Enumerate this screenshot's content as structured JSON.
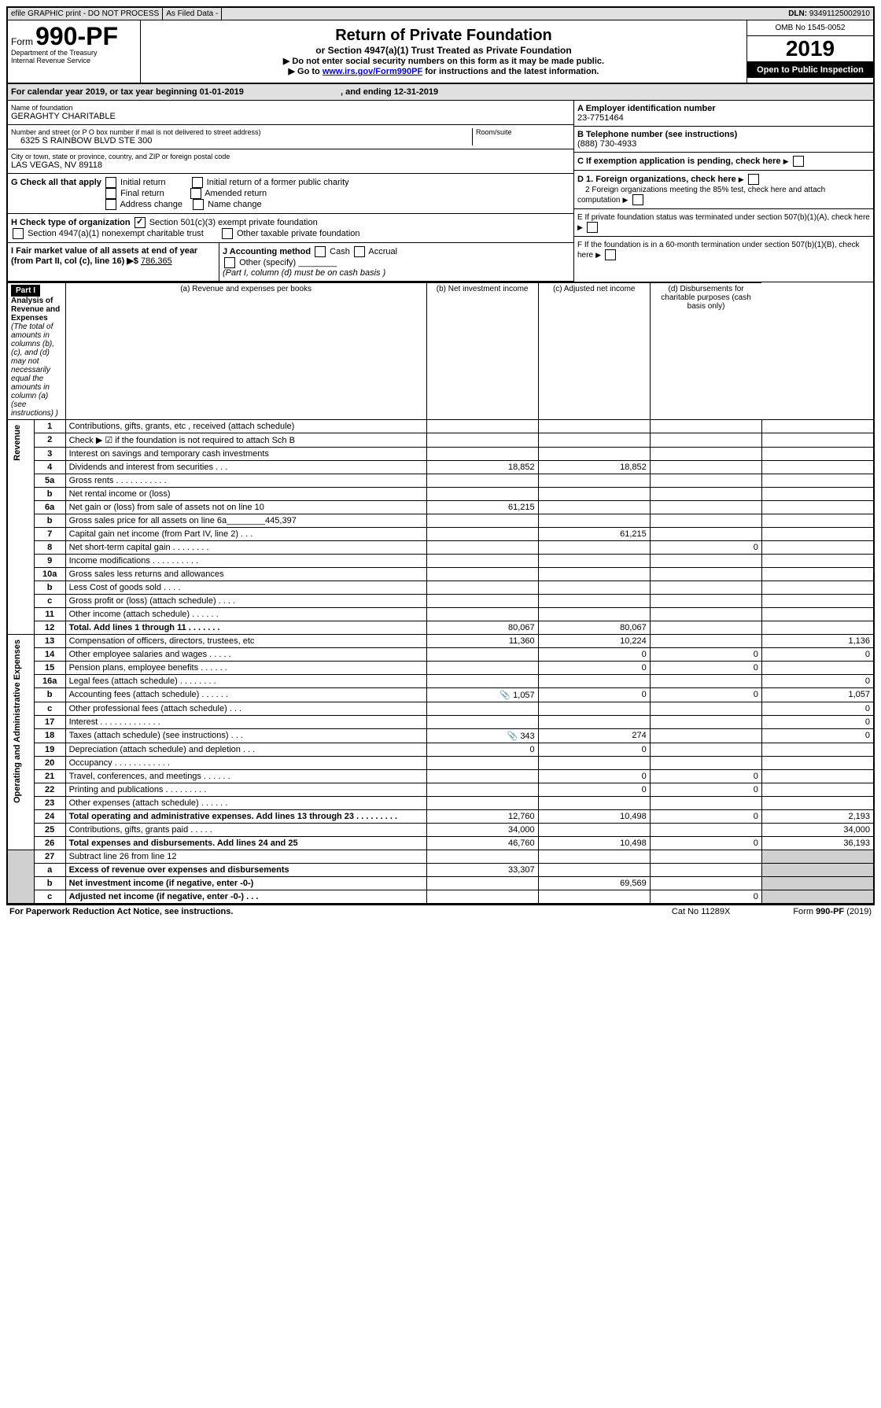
{
  "top_bar": {
    "efile": "efile GRAPHIC print - DO NOT PROCESS",
    "asfiled": "As Filed Data -",
    "dln_label": "DLN:",
    "dln": "93491125002910"
  },
  "header": {
    "form_label": "Form",
    "form_number": "990-PF",
    "dept": "Department of the Treasury",
    "irs": "Internal Revenue Service",
    "title": "Return of Private Foundation",
    "subtitle": "or Section 4947(a)(1) Trust Treated as Private Foundation",
    "inst1": "▶ Do not enter social security numbers on this form as it may be made public.",
    "inst2_prefix": "▶ Go to ",
    "inst2_link": "www.irs.gov/Form990PF",
    "inst2_suffix": " for instructions and the latest information.",
    "omb": "OMB No 1545-0052",
    "year": "2019",
    "inspection": "Open to Public Inspection"
  },
  "calendar": {
    "text1": "For calendar year 2019, or tax year beginning 01-01-2019",
    "text2": ", and ending 12-31-2019"
  },
  "info": {
    "name_label": "Name of foundation",
    "name": "GERAGHTY CHARITABLE",
    "street_label": "Number and street (or P O  box number if mail is not delivered to street address)",
    "street": "6325 S RAINBOW BLVD STE 300",
    "room_label": "Room/suite",
    "city_label": "City or town, state or province, country, and ZIP or foreign postal code",
    "city": "LAS VEGAS, NV  89118",
    "a_label": "A Employer identification number",
    "a_value": "23-7751464",
    "b_label": "B Telephone number (see instructions)",
    "b_value": "(888) 730-4933",
    "c_label": "C If exemption application is pending, check here",
    "d1_label": "D 1. Foreign organizations, check here",
    "d2_label": "2 Foreign organizations meeting the 85% test, check here and attach computation",
    "e_label": "E  If private foundation status was terminated under section 507(b)(1)(A), check here",
    "f_label": "F  If the foundation is in a 60-month termination under section 507(b)(1)(B), check here"
  },
  "checks": {
    "g_label": "G Check all that apply",
    "initial": "Initial return",
    "initial_former": "Initial return of a former public charity",
    "final": "Final return",
    "amended": "Amended return",
    "address": "Address change",
    "name_change": "Name change",
    "h_label": "H Check type of organization",
    "501c3": "Section 501(c)(3) exempt private foundation",
    "4947": "Section 4947(a)(1) nonexempt charitable trust",
    "other_taxable": "Other taxable private foundation",
    "i_label": "I Fair market value of all assets at end of year (from Part II, col  (c), line 16) ▶$",
    "i_value": "786,365",
    "j_label": "J Accounting method",
    "cash": "Cash",
    "accrual": "Accrual",
    "other_specify": "Other (specify)",
    "j_note": "(Part I, column (d) must be on cash basis )"
  },
  "part1": {
    "label": "Part I",
    "title": "Analysis of Revenue and Expenses",
    "note": "(The total of amounts in columns (b), (c), and (d) may not necessarily equal the amounts in column (a) (see instructions) )",
    "col_a": "(a) Revenue and expenses per books",
    "col_b": "(b) Net investment income",
    "col_c": "(c) Adjusted net income",
    "col_d": "(d) Disbursements for charitable purposes (cash basis only)",
    "revenue_label": "Revenue",
    "expenses_label": "Operating and Administrative Expenses"
  },
  "rows": [
    {
      "num": "1",
      "desc": "Contributions, gifts, grants, etc , received (attach schedule)",
      "a": "",
      "b": "",
      "c": "",
      "d": ""
    },
    {
      "num": "2",
      "desc": "Check ▶ ☑ if the foundation is not required to attach Sch  B",
      "a": "",
      "b": "",
      "c": "",
      "d": ""
    },
    {
      "num": "3",
      "desc": "Interest on savings and temporary cash investments",
      "a": "",
      "b": "",
      "c": "",
      "d": ""
    },
    {
      "num": "4",
      "desc": "Dividends and interest from securities  .  .  .",
      "a": "18,852",
      "b": "18,852",
      "c": "",
      "d": ""
    },
    {
      "num": "5a",
      "desc": "Gross rents  .  .  .  .  .  .  .  .  .  .  .",
      "a": "",
      "b": "",
      "c": "",
      "d": ""
    },
    {
      "num": "b",
      "desc": "Net rental income or (loss)",
      "a": "",
      "b": "",
      "c": "",
      "d": ""
    },
    {
      "num": "6a",
      "desc": "Net gain or (loss) from sale of assets not on line 10",
      "a": "61,215",
      "b": "",
      "c": "",
      "d": ""
    },
    {
      "num": "b",
      "desc": "Gross sales price for all assets on line 6a________445,397",
      "a": "",
      "b": "",
      "c": "",
      "d": ""
    },
    {
      "num": "7",
      "desc": "Capital gain net income (from Part IV, line 2)  .  .  .",
      "a": "",
      "b": "61,215",
      "c": "",
      "d": ""
    },
    {
      "num": "8",
      "desc": "Net short-term capital gain  .  .  .  .  .  .  .  .",
      "a": "",
      "b": "",
      "c": "0",
      "d": ""
    },
    {
      "num": "9",
      "desc": "Income modifications .  .  .  .  .  .  .  .  .  .",
      "a": "",
      "b": "",
      "c": "",
      "d": ""
    },
    {
      "num": "10a",
      "desc": "Gross sales less returns and allowances",
      "a": "",
      "b": "",
      "c": "",
      "d": ""
    },
    {
      "num": "b",
      "desc": "Less  Cost of goods sold  .  .  .  .",
      "a": "",
      "b": "",
      "c": "",
      "d": ""
    },
    {
      "num": "c",
      "desc": "Gross profit or (loss) (attach schedule)  .  .  .  .",
      "a": "",
      "b": "",
      "c": "",
      "d": ""
    },
    {
      "num": "11",
      "desc": "Other income (attach schedule)  .  .  .  .  .  .",
      "a": "",
      "b": "",
      "c": "",
      "d": ""
    },
    {
      "num": "12",
      "desc": "Total. Add lines 1 through 11  .  .  .  .  .  .  .",
      "a": "80,067",
      "b": "80,067",
      "c": "",
      "d": "",
      "bold": true
    }
  ],
  "exp_rows": [
    {
      "num": "13",
      "desc": "Compensation of officers, directors, trustees, etc",
      "a": "11,360",
      "b": "10,224",
      "c": "",
      "d": "1,136"
    },
    {
      "num": "14",
      "desc": "Other employee salaries and wages  .  .  .  .  .",
      "a": "",
      "b": "0",
      "c": "0",
      "d": "0"
    },
    {
      "num": "15",
      "desc": "Pension plans, employee benefits  .  .  .  .  .  .",
      "a": "",
      "b": "0",
      "c": "0",
      "d": ""
    },
    {
      "num": "16a",
      "desc": "Legal fees (attach schedule) .  .  .  .  .  .  .  .",
      "a": "",
      "b": "",
      "c": "",
      "d": "0"
    },
    {
      "num": "b",
      "desc": "Accounting fees (attach schedule) .  .  .  .  .  .",
      "a": "1,057",
      "b": "0",
      "c": "0",
      "d": "1,057",
      "icon": true
    },
    {
      "num": "c",
      "desc": "Other professional fees (attach schedule)  .  .  .",
      "a": "",
      "b": "",
      "c": "",
      "d": "0"
    },
    {
      "num": "17",
      "desc": "Interest  .  .  .  .  .  .  .  .  .  .  .  .  .",
      "a": "",
      "b": "",
      "c": "",
      "d": "0"
    },
    {
      "num": "18",
      "desc": "Taxes (attach schedule) (see instructions)  .  .  .",
      "a": "343",
      "b": "274",
      "c": "",
      "d": "0",
      "icon": true
    },
    {
      "num": "19",
      "desc": "Depreciation (attach schedule) and depletion  .  .  .",
      "a": "0",
      "b": "0",
      "c": "",
      "d": ""
    },
    {
      "num": "20",
      "desc": "Occupancy  .  .  .  .  .  .  .  .  .  .  .  .",
      "a": "",
      "b": "",
      "c": "",
      "d": ""
    },
    {
      "num": "21",
      "desc": "Travel, conferences, and meetings .  .  .  .  .  .",
      "a": "",
      "b": "0",
      "c": "0",
      "d": ""
    },
    {
      "num": "22",
      "desc": "Printing and publications .  .  .  .  .  .  .  .  .",
      "a": "",
      "b": "0",
      "c": "0",
      "d": ""
    },
    {
      "num": "23",
      "desc": "Other expenses (attach schedule) .  .  .  .  .  .",
      "a": "",
      "b": "",
      "c": "",
      "d": ""
    },
    {
      "num": "24",
      "desc": "Total operating and administrative expenses. Add lines 13 through 23  .  .  .  .  .  .  .  .  .",
      "a": "12,760",
      "b": "10,498",
      "c": "0",
      "d": "2,193",
      "bold": true
    },
    {
      "num": "25",
      "desc": "Contributions, gifts, grants paid  .  .  .  .  .",
      "a": "34,000",
      "b": "",
      "c": "",
      "d": "34,000"
    },
    {
      "num": "26",
      "desc": "Total expenses and disbursements. Add lines 24 and 25",
      "a": "46,760",
      "b": "10,498",
      "c": "0",
      "d": "36,193",
      "bold": true
    }
  ],
  "bottom_rows": [
    {
      "num": "27",
      "desc": "Subtract line 26 from line 12",
      "a": "",
      "b": "",
      "c": "",
      "d": ""
    },
    {
      "num": "a",
      "desc": "Excess of revenue over expenses and disbursements",
      "a": "33,307",
      "b": "",
      "c": "",
      "d": "",
      "bold": true
    },
    {
      "num": "b",
      "desc": "Net investment income (if negative, enter -0-)",
      "a": "",
      "b": "69,569",
      "c": "",
      "d": "",
      "bold": true
    },
    {
      "num": "c",
      "desc": "Adjusted net income (if negative, enter -0-)  .  .  .",
      "a": "",
      "b": "",
      "c": "0",
      "d": "",
      "bold": true
    }
  ],
  "footer": {
    "left": "For Paperwork Reduction Act Notice, see instructions.",
    "center": "Cat  No  11289X",
    "right": "Form 990-PF (2019)"
  }
}
